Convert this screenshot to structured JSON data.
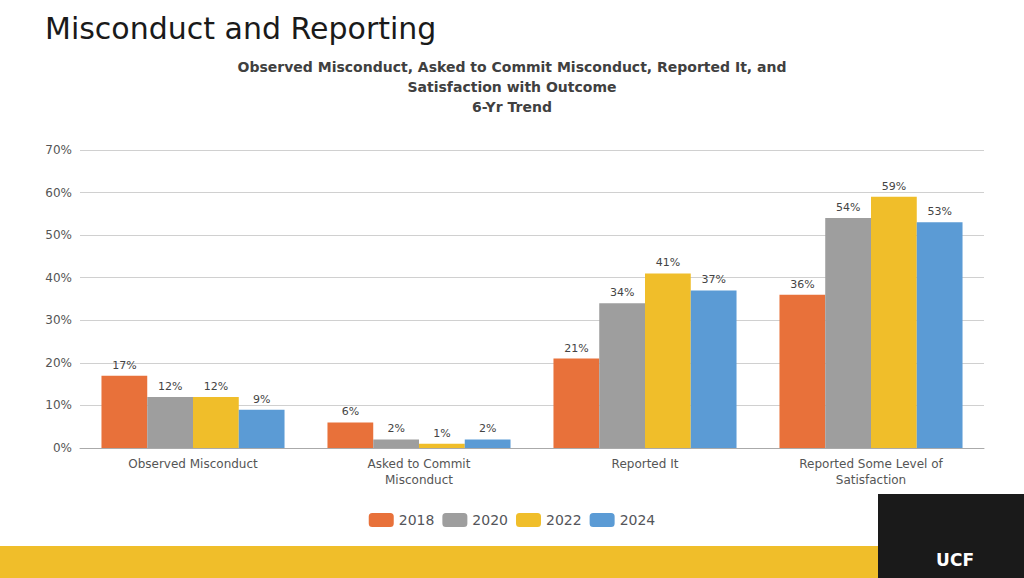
{
  "chart_data": {
    "type": "bar",
    "title": "Misconduct and Reporting",
    "subtitle": "Observed Misconduct, Asked to Commit Misconduct, Reported It, and\nSatisfaction with Outcome\n6-Yr Trend",
    "annotations": [
      "UCF"
    ],
    "categories": [
      "Observed Misconduct",
      "Asked to Commit\nMisconduct",
      "Reported It",
      "Reported Some Level of\nSatisfaction"
    ],
    "series": [
      {
        "name": "2018",
        "color": "#E8713A",
        "values": [
          17,
          6,
          21,
          36
        ],
        "value_labels": [
          "17%",
          "6%",
          "21%",
          "36%"
        ]
      },
      {
        "name": "2020",
        "color": "#9E9E9E",
        "values": [
          12,
          2,
          34,
          54
        ],
        "value_labels": [
          "12%",
          "2%",
          "34%",
          "54%"
        ]
      },
      {
        "name": "2022",
        "color": "#F0BE2A",
        "values": [
          12,
          1,
          41,
          59
        ],
        "value_labels": [
          "12%",
          "1%",
          "41%",
          "59%"
        ]
      },
      {
        "name": "2024",
        "color": "#5B9BD5",
        "values": [
          9,
          2,
          37,
          53
        ],
        "value_labels": [
          "9%",
          "2%",
          "37%",
          "53%"
        ]
      }
    ],
    "ylim": [
      0,
      70
    ],
    "yticks": [
      {
        "value": 0,
        "label": "0%"
      },
      {
        "value": 10,
        "label": "10%"
      },
      {
        "value": 20,
        "label": "20%"
      },
      {
        "value": 30,
        "label": "30%"
      },
      {
        "value": 40,
        "label": "40%"
      },
      {
        "value": 50,
        "label": "50%"
      },
      {
        "value": 60,
        "label": "60%"
      },
      {
        "value": 70,
        "label": "70%"
      }
    ],
    "grid": true,
    "legend": "bottom",
    "data_labels": true
  }
}
